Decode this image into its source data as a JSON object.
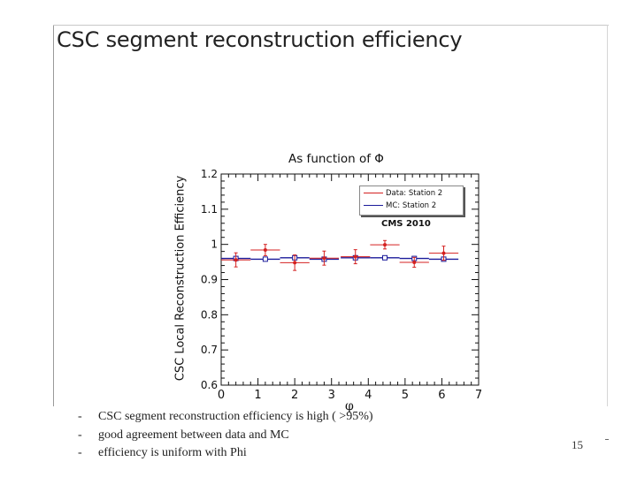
{
  "slide": {
    "title": "CSC segment reconstruction efficiency",
    "bullets": [
      "CSC segment reconstruction efficiency is high ( >95%)",
      "good agreement between data and MC",
      "efficiency is uniform with Phi"
    ],
    "bullet_marker": "-",
    "page_number": "15"
  },
  "chart_data": {
    "type": "scatter",
    "title": "As function of Φ",
    "xlabel": "φ",
    "ylabel": "CSC Local Reconstruction Efficiency",
    "xlim": [
      0,
      7
    ],
    "ylim": [
      0.6,
      1.2
    ],
    "x_ticks": [
      "0",
      "1",
      "2",
      "3",
      "4",
      "5",
      "6",
      "7"
    ],
    "y_ticks": [
      "0.6",
      "0.7",
      "0.8",
      "0.9",
      "1",
      "1.1",
      "1.2"
    ],
    "annotation": "CMS 2010",
    "legend_position": "top-right",
    "series": [
      {
        "name": "Data: Station 2",
        "color": "#d42020",
        "x": [
          0.4,
          1.2,
          2.0,
          2.8,
          3.65,
          4.45,
          5.25,
          6.05
        ],
        "xerr": 0.4,
        "y": [
          0.956,
          0.984,
          0.948,
          0.961,
          0.965,
          0.999,
          0.949,
          0.975
        ],
        "yerr": [
          0.02,
          0.016,
          0.022,
          0.02,
          0.02,
          0.012,
          0.014,
          0.02
        ]
      },
      {
        "name": "MC: Station 2",
        "color": "#1a1a9a",
        "x": [
          0.4,
          1.2,
          2.0,
          2.8,
          3.65,
          4.45,
          5.25,
          6.05
        ],
        "xerr": 0.4,
        "y": [
          0.96,
          0.958,
          0.962,
          0.958,
          0.962,
          0.962,
          0.96,
          0.958
        ]
      }
    ]
  }
}
